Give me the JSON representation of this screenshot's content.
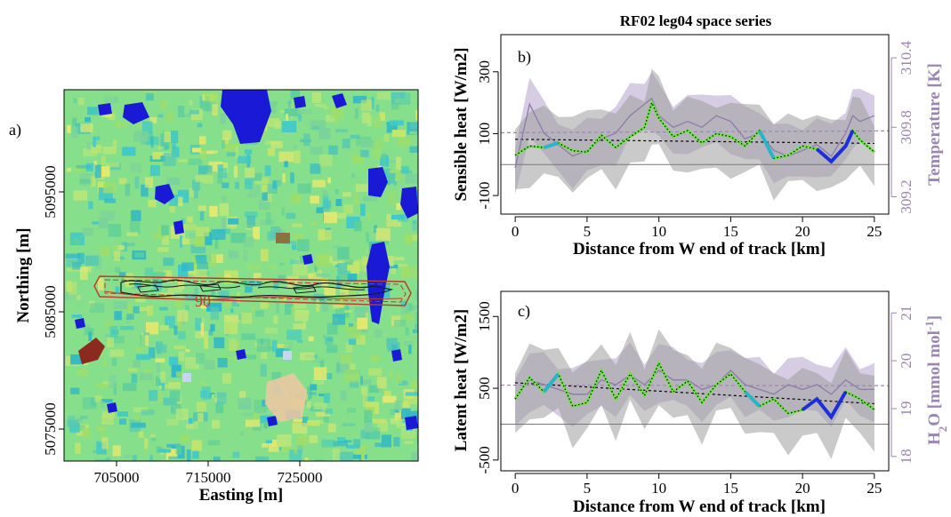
{
  "figure_title": "RF02 leg04 space series",
  "colors": {
    "purple": "#9b86b3",
    "purple_fill": "#cfc3de",
    "gray_fill": "#bdbdbd",
    "gray_fill_dark": "#8f8f8f",
    "red": "#c0392b",
    "map_base": "#7fe08a",
    "lake": "#1a1ad6"
  },
  "chart_data": [
    {
      "panel": "a)",
      "type": "map",
      "xlabel": "Easting [m]",
      "ylabel": "Northing [m]",
      "xticks": [
        "705000",
        "715000",
        "725000"
      ],
      "yticks": [
        "5075000",
        "5085000",
        "5095000"
      ],
      "contour_label": "90"
    },
    {
      "panel": "b)",
      "type": "line",
      "xlabel": "Distance from W end of track [km]",
      "ylabel": "Sensible heat  [W/m2]",
      "ylabel_right": "Temperature [K]",
      "xticks": [
        "0",
        "5",
        "10",
        "15",
        "20",
        "25"
      ],
      "yticks": [
        "-100",
        "100",
        "300"
      ],
      "yticks_right": [
        "309.2",
        "309.8",
        "310.4"
      ],
      "xlim": [
        -1,
        26
      ],
      "ylim": [
        -160,
        420
      ],
      "ylim_right": [
        309.05,
        310.6
      ],
      "x": [
        0,
        1,
        2,
        3,
        4,
        5,
        6,
        7,
        8,
        9,
        9.5,
        10,
        11,
        12,
        13,
        14,
        15,
        16,
        17,
        18,
        19,
        20,
        21,
        22,
        23,
        23.5,
        24,
        25
      ],
      "series": [
        {
          "values": [
            30,
            60,
            55,
            70,
            45,
            40,
            95,
            55,
            90,
            120,
            200,
            150,
            90,
            110,
            70,
            100,
            90,
            60,
            110,
            20,
            30,
            60,
            50,
            10,
            60,
            110,
            80,
            40
          ]
        },
        {
          "values": [
            309.45,
            310.0,
            309.75,
            309.65,
            309.55,
            309.6,
            309.7,
            309.75,
            309.9,
            310.0,
            310.05,
            309.9,
            309.8,
            309.85,
            309.8,
            309.9,
            309.85,
            309.7,
            309.75,
            309.6,
            309.55,
            309.6,
            309.65,
            309.55,
            309.75,
            309.9,
            309.85,
            309.9
          ]
        }
      ]
    },
    {
      "panel": "c)",
      "type": "line",
      "xlabel": "Distance from W end of track [km]",
      "ylabel": "Latent heat  [W/m2]",
      "ylabel_right": "H2O [mmol mol-1]",
      "ylabel_right_parts": {
        "base": "H",
        "sub": "2",
        "mid": "O [mmol mol",
        "sup": "-1",
        "end": "]"
      },
      "xticks": [
        "0",
        "5",
        "10",
        "15",
        "20",
        "25"
      ],
      "yticks": [
        "-500",
        "500",
        "1500"
      ],
      "yticks_right": [
        "18",
        "19",
        "20",
        "21"
      ],
      "xlim": [
        -1,
        26
      ],
      "ylim": [
        -650,
        1850
      ],
      "ylim_right": [
        17.7,
        21.45
      ],
      "x": [
        0,
        1,
        2,
        3,
        4,
        5,
        6,
        7,
        8,
        9,
        10,
        11,
        12,
        13,
        14,
        15,
        16,
        17,
        18,
        19,
        20,
        21,
        22,
        23,
        24,
        25
      ],
      "series": [
        {
          "values": [
            350,
            650,
            450,
            700,
            250,
            300,
            750,
            350,
            700,
            400,
            850,
            450,
            600,
            300,
            550,
            700,
            450,
            250,
            350,
            150,
            200,
            350,
            100,
            450,
            350,
            200
          ]
        },
        {
          "values": [
            19.2,
            19.6,
            19.5,
            19.4,
            19.3,
            19.3,
            19.6,
            19.5,
            19.7,
            19.5,
            19.8,
            19.6,
            19.6,
            19.4,
            19.5,
            19.8,
            19.5,
            19.4,
            19.3,
            19.5,
            19.4,
            19.5,
            19.3,
            19.6,
            19.4,
            19.4
          ]
        }
      ]
    }
  ]
}
